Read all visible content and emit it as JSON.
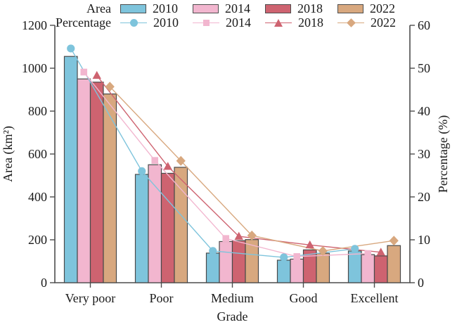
{
  "chart_data": {
    "type": "bar",
    "subtype": "grouped-bar-with-lines",
    "categories": [
      "Very poor",
      "Poor",
      "Medium",
      "Good",
      "Excellent"
    ],
    "xlabel": "Grade",
    "left_axis": {
      "label": "Area (km²)",
      "min": 0,
      "max": 1200,
      "ticks": [
        0,
        200,
        400,
        600,
        800,
        1000,
        1200
      ]
    },
    "right_axis": {
      "label": "Percentage (%)",
      "min": 0,
      "max": 60,
      "ticks": [
        0,
        10,
        20,
        30,
        40,
        50,
        60
      ]
    },
    "legend_position": "top",
    "grid": false,
    "series": [
      {
        "name": "2010",
        "kind": "area-bar",
        "color": "#7EC4DC",
        "values": [
          1055,
          505,
          138,
          105,
          148
        ]
      },
      {
        "name": "2014",
        "kind": "area-bar",
        "color": "#F2B6CF",
        "values": [
          950,
          550,
          192,
          110,
          131
        ]
      },
      {
        "name": "2018",
        "kind": "area-bar",
        "color": "#CE6370",
        "values": [
          935,
          510,
          196,
          153,
          125
        ]
      },
      {
        "name": "2022",
        "kind": "area-bar",
        "color": "#D8A87F",
        "values": [
          880,
          538,
          201,
          137,
          173
        ]
      },
      {
        "name": "2010",
        "kind": "percentage-line",
        "marker": "circle",
        "color": "#7EC4DC",
        "values": [
          54.6,
          26.0,
          7.4,
          5.9,
          7.9
        ]
      },
      {
        "name": "2014",
        "kind": "percentage-line",
        "marker": "square",
        "color": "#F2B6CF",
        "values": [
          49.1,
          28.5,
          10.3,
          6.1,
          6.8
        ]
      },
      {
        "name": "2018",
        "kind": "percentage-line",
        "marker": "triangle",
        "color": "#CE6370",
        "values": [
          48.3,
          27.1,
          10.8,
          8.8,
          7.1
        ]
      },
      {
        "name": "2022",
        "kind": "percentage-line",
        "marker": "diamond",
        "color": "#D8A87F",
        "values": [
          45.7,
          28.4,
          11.0,
          7.4,
          9.8
        ]
      }
    ],
    "colors": {
      "axis": "#4d4d4d",
      "bar_edge": "#4a4a4a",
      "text": "#1a1a1a"
    }
  },
  "legend": {
    "area_label": "Area",
    "percentage_label": "Percentage",
    "years": [
      "2010",
      "2014",
      "2018",
      "2022"
    ]
  }
}
